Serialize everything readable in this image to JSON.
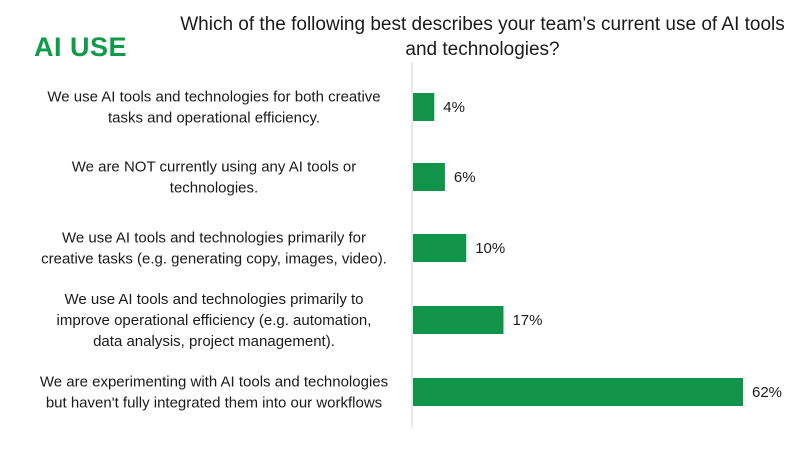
{
  "header": {
    "badge": "AI USE",
    "title": "Which of the following best describes your team's current use of AI tools and technologies?"
  },
  "colors": {
    "bar": "#12934a",
    "badge": "#0f9b48"
  },
  "chart_data": {
    "type": "bar",
    "orientation": "horizontal",
    "title": "Which of the following best describes your team's current use of AI tools and technologies?",
    "categories": [
      [
        "We use AI tools and technologies for both creative",
        "tasks and operational efficiency."
      ],
      [
        "We are NOT currently using any AI tools or",
        "technologies."
      ],
      [
        "We use AI tools and technologies primarily for",
        "creative tasks (e.g. generating copy, images, video)."
      ],
      [
        "We use AI tools and technologies primarily to",
        "improve operational efficiency (e.g. automation,",
        "data analysis, project management)."
      ],
      [
        "We are experimenting with AI tools and technologies",
        "but haven't fully integrated them into our workflows"
      ]
    ],
    "values": [
      4,
      6,
      10,
      17,
      62
    ],
    "value_labels": [
      "4%",
      "6%",
      "10%",
      "17%",
      "62%"
    ],
    "unit": "%",
    "xlim": [
      0,
      62
    ],
    "grid": false,
    "legend": "none"
  }
}
